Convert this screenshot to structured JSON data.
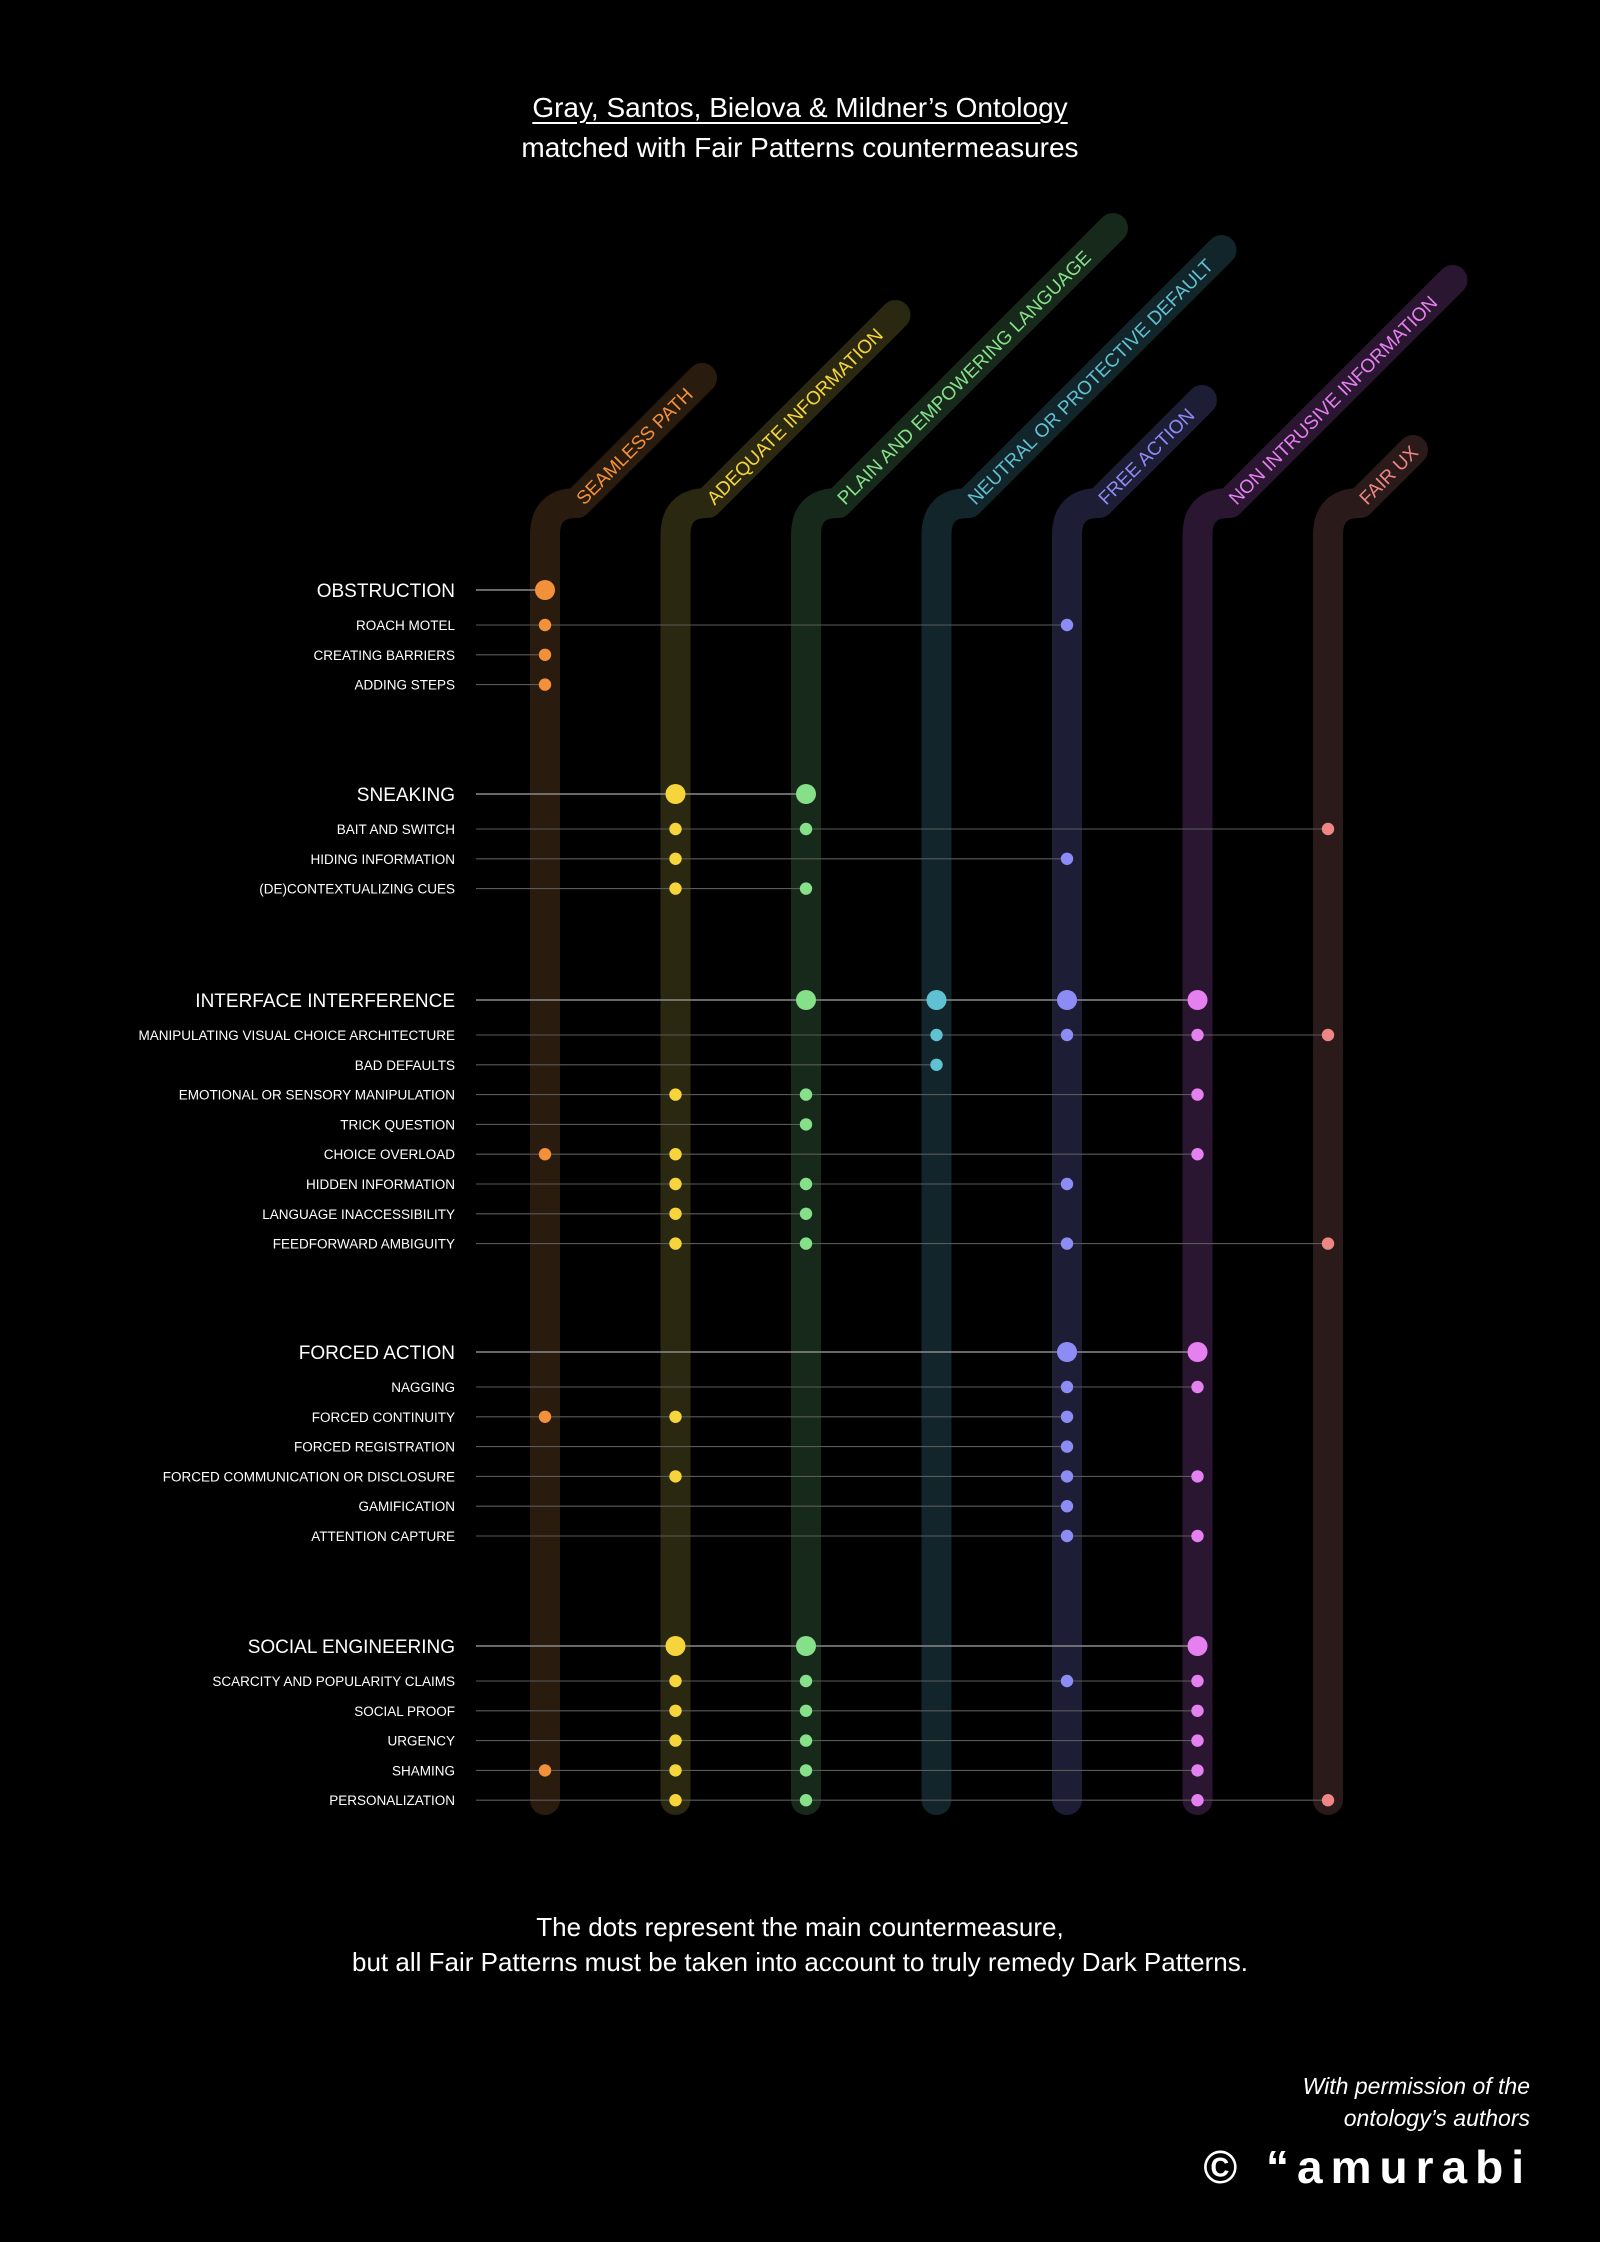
{
  "header": {
    "title_line1": "Gray, Santos, Bielova & Mildner’s Ontology",
    "title_line2": "matched with Fair Patterns countermeasures"
  },
  "columns": [
    {
      "label": "SEAMLESS PATH",
      "color": "#f2913a",
      "tint": "#2a1b0f",
      "tag_top": 378
    },
    {
      "label": "ADEQUATE INFORMATION",
      "color": "#f5d53b",
      "tint": "#2a2810",
      "tag_top": 315
    },
    {
      "label": "PLAIN AND EMPOWERING LANGUAGE",
      "color": "#86e08a",
      "tint": "#17291b",
      "tag_top": 228
    },
    {
      "label": "NEUTRAL OR PROTECTIVE DEFAULT",
      "color": "#5fc1d2",
      "tint": "#12252a",
      "tag_top": 250
    },
    {
      "label": "FREE ACTION",
      "color": "#8d8cf5",
      "tint": "#1d1d35",
      "tag_top": 400
    },
    {
      "label": "NON INTRUSIVE INFORMATION",
      "color": "#e480ef",
      "tint": "#2b1632",
      "tag_top": 280
    },
    {
      "label": "FAIR UX",
      "color": "#ee8686",
      "tint": "#2a1a1a",
      "tag_top": 450
    }
  ],
  "groups": [
    {
      "name": "OBSTRUCTION",
      "cols": [
        0
      ],
      "items": [
        {
          "name": "ROACH MOTEL",
          "cols": [
            0,
            4
          ]
        },
        {
          "name": "CREATING BARRIERS",
          "cols": [
            0
          ]
        },
        {
          "name": "ADDING STEPS",
          "cols": [
            0
          ]
        }
      ]
    },
    {
      "name": "SNEAKING",
      "cols": [
        1,
        2
      ],
      "items": [
        {
          "name": "BAIT AND SWITCH",
          "cols": [
            1,
            2,
            6
          ]
        },
        {
          "name": "HIDING INFORMATION",
          "cols": [
            1,
            4
          ]
        },
        {
          "name": "(DE)CONTEXTUALIZING CUES",
          "cols": [
            1,
            2
          ]
        }
      ]
    },
    {
      "name": "INTERFACE INTERFERENCE",
      "cols": [
        2,
        3,
        4,
        5
      ],
      "items": [
        {
          "name": "MANIPULATING VISUAL CHOICE ARCHITECTURE",
          "cols": [
            3,
            4,
            5,
            6
          ]
        },
        {
          "name": "BAD DEFAULTS",
          "cols": [
            3
          ]
        },
        {
          "name": "EMOTIONAL OR SENSORY MANIPULATION",
          "cols": [
            1,
            2,
            5
          ]
        },
        {
          "name": "TRICK QUESTION",
          "cols": [
            2
          ]
        },
        {
          "name": "CHOICE OVERLOAD",
          "cols": [
            0,
            1,
            5
          ]
        },
        {
          "name": "HIDDEN INFORMATION",
          "cols": [
            1,
            2,
            4
          ]
        },
        {
          "name": "LANGUAGE INACCESSIBILITY",
          "cols": [
            1,
            2
          ]
        },
        {
          "name": "FEEDFORWARD AMBIGUITY",
          "cols": [
            1,
            2,
            4,
            6
          ]
        }
      ]
    },
    {
      "name": "FORCED ACTION",
      "cols": [
        4,
        5
      ],
      "items": [
        {
          "name": "NAGGING",
          "cols": [
            4,
            5
          ]
        },
        {
          "name": "FORCED CONTINUITY",
          "cols": [
            0,
            1,
            4
          ]
        },
        {
          "name": "FORCED REGISTRATION",
          "cols": [
            4
          ]
        },
        {
          "name": "FORCED COMMUNICATION OR DISCLOSURE",
          "cols": [
            1,
            4,
            5
          ]
        },
        {
          "name": "GAMIFICATION",
          "cols": [
            4
          ]
        },
        {
          "name": "ATTENTION CAPTURE",
          "cols": [
            4,
            5
          ]
        }
      ]
    },
    {
      "name": "SOCIAL ENGINEERING",
      "cols": [
        1,
        2,
        5
      ],
      "items": [
        {
          "name": "SCARCITY AND POPULARITY CLAIMS",
          "cols": [
            1,
            2,
            4,
            5
          ]
        },
        {
          "name": "SOCIAL PROOF",
          "cols": [
            1,
            2,
            5
          ]
        },
        {
          "name": "URGENCY",
          "cols": [
            1,
            2,
            5
          ]
        },
        {
          "name": "SHAMING",
          "cols": [
            0,
            1,
            2,
            5
          ]
        },
        {
          "name": "PERSONALIZATION",
          "cols": [
            1,
            2,
            5,
            6
          ]
        }
      ]
    }
  ],
  "footer": {
    "note_line1": "The dots represent the main countermeasure,",
    "note_line2": "but all Fair Patterns must be taken into account to truly remedy Dark Patterns.",
    "permission_line1": "With permission of the",
    "permission_line2": "ontology’s authors",
    "logo": "© “amurabi"
  }
}
